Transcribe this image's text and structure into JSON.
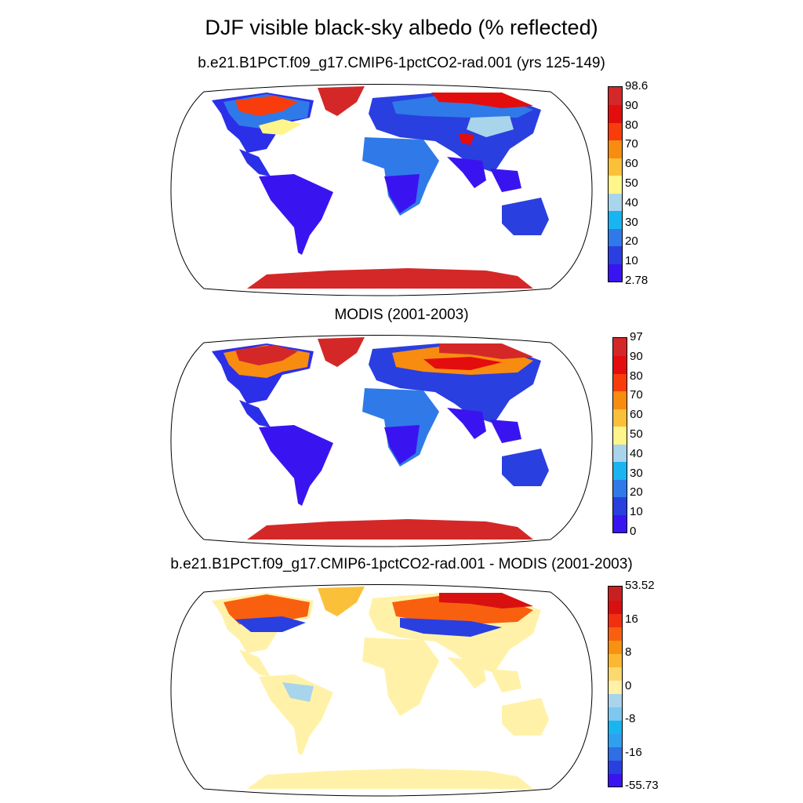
{
  "title": "DJF visible black-sky albedo (% reflected)",
  "panels": [
    {
      "title": "b.e21.B1PCT.f09_g17.CMIP6-1pctCO2-rad.001 (yrs 125-149)",
      "colorbar": {
        "labels": [
          "2.78",
          "10",
          "20",
          "30",
          "40",
          "50",
          "60",
          "70",
          "80",
          "90",
          "98.6"
        ],
        "colors": [
          "#3a14f0",
          "#2a3fe0",
          "#2f7ae8",
          "#1ab4f0",
          "#a8d4ec",
          "#fff58a",
          "#fbc03a",
          "#f88c10",
          "#f83c0c",
          "#e40d0d",
          "#d42828"
        ]
      }
    },
    {
      "title": "MODIS (2001-2003)",
      "colorbar": {
        "labels": [
          "0",
          "10",
          "20",
          "30",
          "40",
          "50",
          "60",
          "70",
          "80",
          "90",
          "97"
        ],
        "colors": [
          "#3a14f0",
          "#2a3fe0",
          "#2f7ae8",
          "#1ab4f0",
          "#a8d4ec",
          "#fff58a",
          "#fbc03a",
          "#f88c10",
          "#f83c0c",
          "#e40d0d",
          "#d42828"
        ]
      }
    },
    {
      "title": "b.e21.B1PCT.f09_g17.CMIP6-1pctCO2-rad.001 - MODIS (2001-2003)",
      "colorbar": {
        "labels": [
          "-55.73",
          "-16",
          "-8",
          "0",
          "8",
          "16",
          "53.52"
        ],
        "colors": [
          "#3a14f0",
          "#2a3fe0",
          "#2f6ee4",
          "#2f9ff0",
          "#1ab4f0",
          "#7cc8ee",
          "#a8d4ec",
          "#fff2a8",
          "#fbd870",
          "#fbb830",
          "#f89010",
          "#f86010",
          "#f03010",
          "#d81010",
          "#c82020"
        ]
      }
    }
  ]
}
